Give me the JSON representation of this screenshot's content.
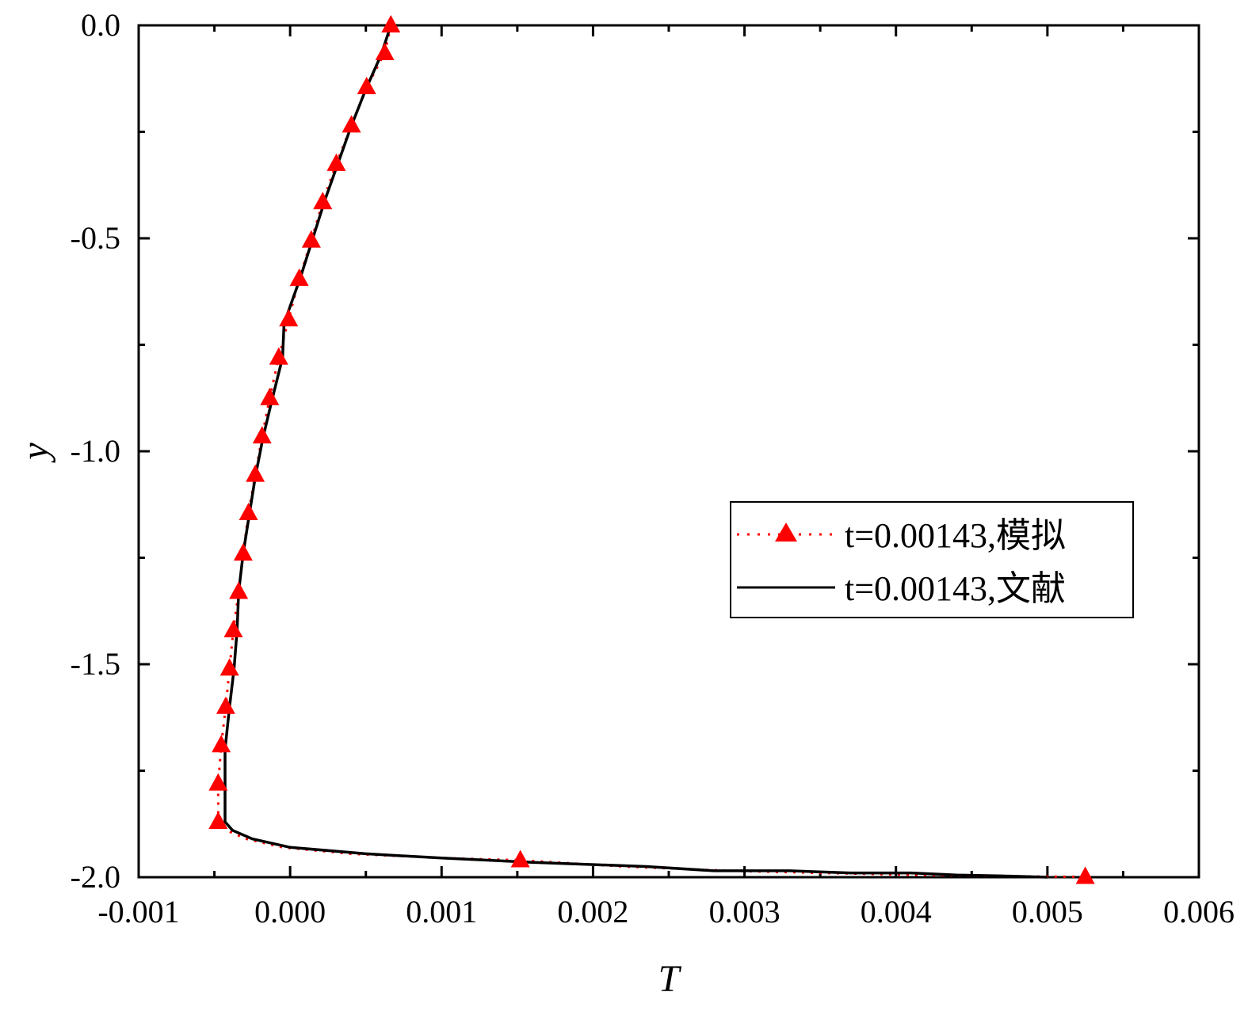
{
  "chart_data": {
    "type": "line",
    "xlabel": "T",
    "ylabel": "y",
    "xlim": [
      -0.001,
      0.006
    ],
    "ylim": [
      -2.0,
      0.0
    ],
    "x_ticks": [
      -0.001,
      0.0,
      0.001,
      0.002,
      0.003,
      0.004,
      0.005,
      0.006
    ],
    "x_tick_labels": [
      "-0.001",
      "0.000",
      "0.001",
      "0.002",
      "0.003",
      "0.004",
      "0.005",
      "0.006"
    ],
    "y_ticks": [
      0.0,
      -0.5,
      -1.0,
      -1.5,
      -2.0
    ],
    "y_tick_labels": [
      "0.0",
      "-0.5",
      "-1.0",
      "-1.5",
      "-2.0"
    ],
    "grid": false,
    "legend_position": "right",
    "series": [
      {
        "name": "t=0.00143,模拟",
        "style": "dotted-triangle",
        "color": "#ff0000",
        "points": [
          [
            0.000665,
            0.0
          ],
          [
            0.000625,
            -0.065
          ],
          [
            0.000505,
            -0.145
          ],
          [
            0.000405,
            -0.235
          ],
          [
            0.000305,
            -0.325
          ],
          [
            0.000215,
            -0.415
          ],
          [
            0.00014,
            -0.505
          ],
          [
            6e-05,
            -0.595
          ],
          [
            -1e-05,
            -0.69
          ],
          [
            -7.5e-05,
            -0.78
          ],
          [
            -0.000135,
            -0.875
          ],
          [
            -0.000185,
            -0.965
          ],
          [
            -0.00023,
            -1.055
          ],
          [
            -0.000275,
            -1.145
          ],
          [
            -0.00031,
            -1.24
          ],
          [
            -0.00034,
            -1.33
          ],
          [
            -0.000375,
            -1.42
          ],
          [
            -0.0004,
            -1.51
          ],
          [
            -0.000425,
            -1.6
          ],
          [
            -0.000455,
            -1.69
          ],
          [
            -0.000475,
            -1.78
          ],
          [
            -0.000475,
            -1.87
          ],
          [
            -0.00042,
            -1.89
          ],
          [
            -0.00029,
            -1.91
          ],
          [
            -5e-05,
            -1.93
          ],
          [
            0.0004,
            -1.945
          ],
          [
            0.001,
            -1.955
          ],
          [
            0.00152,
            -1.96
          ],
          [
            0.0022,
            -1.975
          ],
          [
            0.0029,
            -1.985
          ],
          [
            0.0035,
            -1.99
          ],
          [
            0.0042,
            -1.995
          ],
          [
            0.0048,
            -1.998
          ],
          [
            0.00525,
            -1.999
          ]
        ],
        "markers": [
          [
            0.000665,
            0.0
          ],
          [
            0.000625,
            -0.065
          ],
          [
            0.000505,
            -0.145
          ],
          [
            0.000405,
            -0.235
          ],
          [
            0.000305,
            -0.325
          ],
          [
            0.000215,
            -0.415
          ],
          [
            0.00014,
            -0.505
          ],
          [
            6e-05,
            -0.595
          ],
          [
            -1e-05,
            -0.69
          ],
          [
            -7.5e-05,
            -0.78
          ],
          [
            -0.000135,
            -0.875
          ],
          [
            -0.000185,
            -0.965
          ],
          [
            -0.00023,
            -1.055
          ],
          [
            -0.000275,
            -1.145
          ],
          [
            -0.00031,
            -1.24
          ],
          [
            -0.00034,
            -1.33
          ],
          [
            -0.000375,
            -1.42
          ],
          [
            -0.0004,
            -1.51
          ],
          [
            -0.000425,
            -1.6
          ],
          [
            -0.000455,
            -1.69
          ],
          [
            -0.000475,
            -1.78
          ],
          [
            -0.000475,
            -1.87
          ],
          [
            0.00152,
            -1.96
          ],
          [
            0.00525,
            -1.999
          ]
        ]
      },
      {
        "name": "t=0.00143,文献",
        "style": "solid",
        "color": "#000000",
        "points": [
          [
            0.000665,
            0.0
          ],
          [
            0.0006,
            -0.07
          ],
          [
            0.0005,
            -0.15
          ],
          [
            0.0004,
            -0.24
          ],
          [
            0.00032,
            -0.32
          ],
          [
            0.00023,
            -0.41
          ],
          [
            0.00015,
            -0.5
          ],
          [
            7e-05,
            -0.59
          ],
          [
            -4e-05,
            -0.7
          ],
          [
            -5e-05,
            -0.78
          ],
          [
            -0.00012,
            -0.88
          ],
          [
            -0.00018,
            -0.97
          ],
          [
            -0.00023,
            -1.06
          ],
          [
            -0.00027,
            -1.15
          ],
          [
            -0.00031,
            -1.24
          ],
          [
            -0.00034,
            -1.33
          ],
          [
            -0.00035,
            -1.42
          ],
          [
            -0.00037,
            -1.51
          ],
          [
            -0.0004,
            -1.6
          ],
          [
            -0.00043,
            -1.7
          ],
          [
            -0.00043,
            -1.8
          ],
          [
            -0.00043,
            -1.87
          ],
          [
            -0.00038,
            -1.89
          ],
          [
            -0.00025,
            -1.91
          ],
          [
            0.0,
            -1.93
          ],
          [
            0.0005,
            -1.945
          ],
          [
            0.001,
            -1.955
          ],
          [
            0.0016,
            -1.965
          ],
          [
            0.00235,
            -1.975
          ],
          [
            0.0028,
            -1.985
          ],
          [
            0.0033,
            -1.985
          ],
          [
            0.0037,
            -1.99
          ],
          [
            0.0041,
            -1.99
          ],
          [
            0.0044,
            -1.995
          ],
          [
            0.0047,
            -1.997
          ],
          [
            0.005,
            -2.0
          ]
        ]
      }
    ]
  }
}
